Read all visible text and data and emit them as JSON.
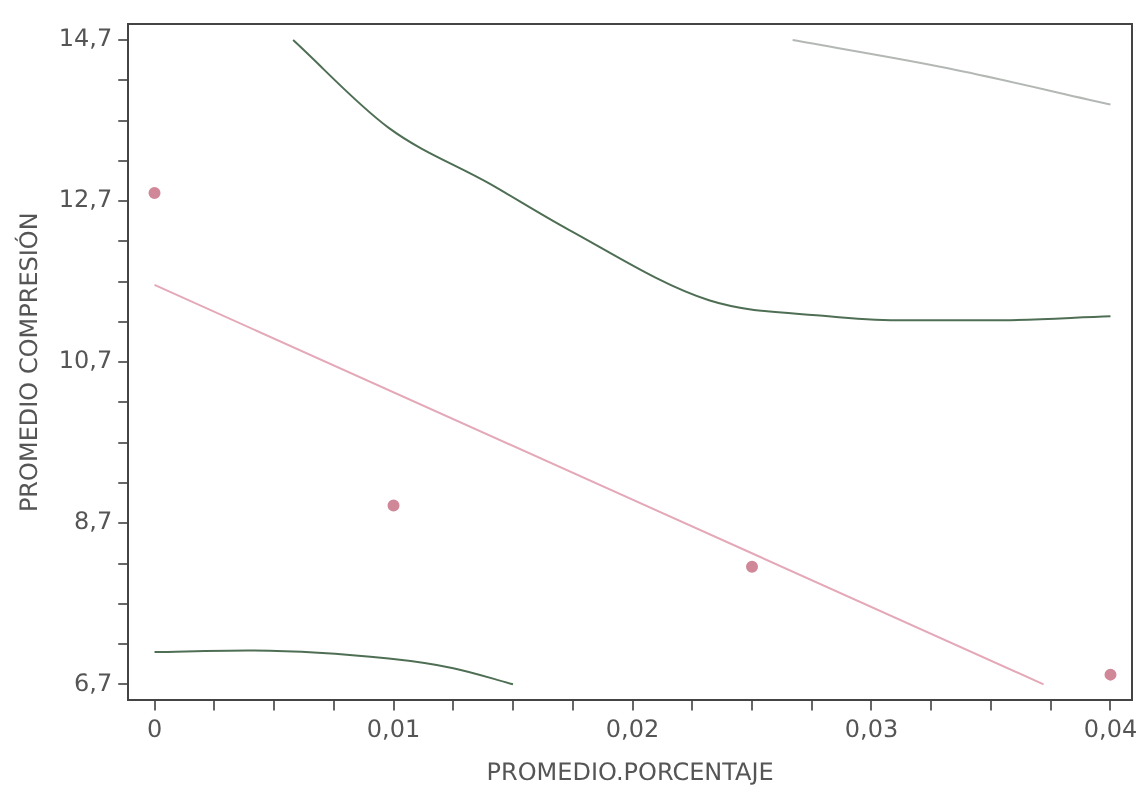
{
  "chart_data": {
    "type": "scatter",
    "xlabel": "PROMEDIO.PORCENTAJE",
    "ylabel": "PROMEDIO COMPRESIÓN",
    "xlim": [
      -0.0011,
      0.0409
    ],
    "ylim": [
      6.5,
      14.9
    ],
    "xticks": [
      {
        "value": 0,
        "label": "0"
      },
      {
        "value": 0.0025,
        "label": null
      },
      {
        "value": 0.005,
        "label": null
      },
      {
        "value": 0.0075,
        "label": null
      },
      {
        "value": 0.01,
        "label": "0,01"
      },
      {
        "value": 0.0125,
        "label": null
      },
      {
        "value": 0.015,
        "label": null
      },
      {
        "value": 0.0175,
        "label": null
      },
      {
        "value": 0.02,
        "label": "0,02"
      },
      {
        "value": 0.0225,
        "label": null
      },
      {
        "value": 0.025,
        "label": null
      },
      {
        "value": 0.0275,
        "label": null
      },
      {
        "value": 0.03,
        "label": "0,03"
      },
      {
        "value": 0.0325,
        "label": null
      },
      {
        "value": 0.035,
        "label": null
      },
      {
        "value": 0.0375,
        "label": null
      },
      {
        "value": 0.04,
        "label": "0,04"
      }
    ],
    "yticks": [
      {
        "value": 6.7,
        "label": "6,7"
      },
      {
        "value": 7.2,
        "label": null
      },
      {
        "value": 7.7,
        "label": null
      },
      {
        "value": 8.2,
        "label": null
      },
      {
        "value": 8.7,
        "label": "8,7"
      },
      {
        "value": 9.2,
        "label": null
      },
      {
        "value": 9.7,
        "label": null
      },
      {
        "value": 10.2,
        "label": null
      },
      {
        "value": 10.7,
        "label": "10,7"
      },
      {
        "value": 11.2,
        "label": null
      },
      {
        "value": 11.7,
        "label": null
      },
      {
        "value": 12.2,
        "label": null
      },
      {
        "value": 12.7,
        "label": "12,7"
      },
      {
        "value": 13.2,
        "label": null
      },
      {
        "value": 13.7,
        "label": null
      },
      {
        "value": 14.2,
        "label": null
      },
      {
        "value": 14.7,
        "label": "14,7"
      }
    ],
    "grid": false,
    "legend": false,
    "series": [
      {
        "color": "#d08898",
        "marker": "circle",
        "x": [
          0,
          0.01,
          0.025,
          0.04
        ],
        "values": [
          12.8,
          8.92,
          8.16,
          6.82
        ]
      },
      {
        "type": "line",
        "color": "#e4a8b8",
        "marker": "none",
        "x": [
          0,
          0.0372
        ],
        "values": [
          11.66,
          6.7
        ]
      },
      {
        "type": "line",
        "color": "#4f6f55",
        "marker": "none",
        "x": [
          0.0058,
          0.0098,
          0.014,
          0.0173,
          0.0232,
          0.0282,
          0.0311,
          0.035,
          0.04
        ],
        "values": [
          14.7,
          13.61,
          12.92,
          12.35,
          11.47,
          11.27,
          11.22,
          11.22,
          11.27
        ]
      },
      {
        "type": "line",
        "color": "#4f6f55",
        "marker": "none",
        "x": [
          0,
          0.0039,
          0.0098,
          0.0125,
          0.015
        ],
        "values": [
          7.1,
          7.12,
          7.02,
          6.9,
          6.7
        ]
      },
      {
        "type": "line",
        "color": "#b4b8b4",
        "marker": "none",
        "x": [
          0.0267,
          0.0332,
          0.04
        ],
        "values": [
          14.7,
          14.35,
          13.9
        ]
      }
    ]
  }
}
